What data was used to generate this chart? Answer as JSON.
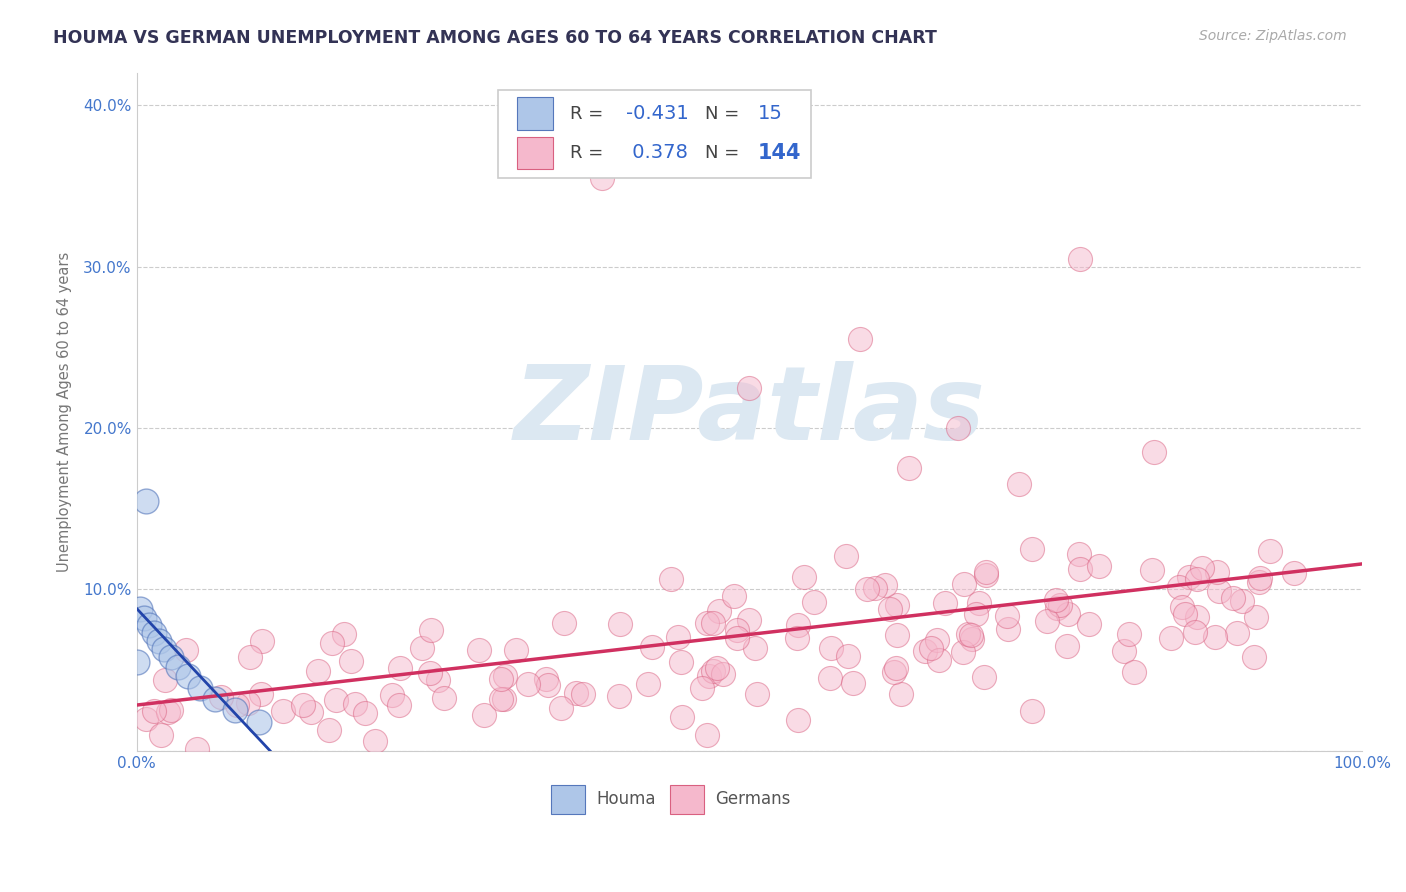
{
  "title": "HOUMA VS GERMAN UNEMPLOYMENT AMONG AGES 60 TO 64 YEARS CORRELATION CHART",
  "source_text": "Source: ZipAtlas.com",
  "ylabel": "Unemployment Among Ages 60 to 64 years",
  "xlim": [
    0,
    1.0
  ],
  "ylim": [
    0,
    0.42
  ],
  "xticks": [
    0.0,
    0.1,
    0.2,
    0.3,
    0.4,
    0.5,
    0.6,
    0.7,
    0.8,
    0.9,
    1.0
  ],
  "xticklabels": [
    "0.0%",
    "",
    "",
    "",
    "",
    "",
    "",
    "",
    "",
    "",
    "100.0%"
  ],
  "yticks": [
    0.0,
    0.1,
    0.2,
    0.3,
    0.4
  ],
  "yticklabels": [
    "",
    "10.0%",
    "20.0%",
    "30.0%",
    "40.0%"
  ],
  "houma_R": -0.431,
  "houma_N": 15,
  "german_R": 0.378,
  "german_N": 144,
  "houma_face": "#aec6e8",
  "houma_edge": "#5577bb",
  "german_face": "#f5b8cc",
  "german_edge": "#d96080",
  "houma_line": "#2244aa",
  "german_line": "#d03060",
  "watermark": "ZIPatlas",
  "watermark_color": "#dce8f2",
  "grid_color": "#cccccc",
  "title_color": "#333355",
  "tick_color": "#4477cc",
  "ylabel_color": "#777777",
  "legend_R_color": "#3366cc",
  "legend_N_houma_color": "#3366cc",
  "legend_N_german_color": "#3366cc"
}
